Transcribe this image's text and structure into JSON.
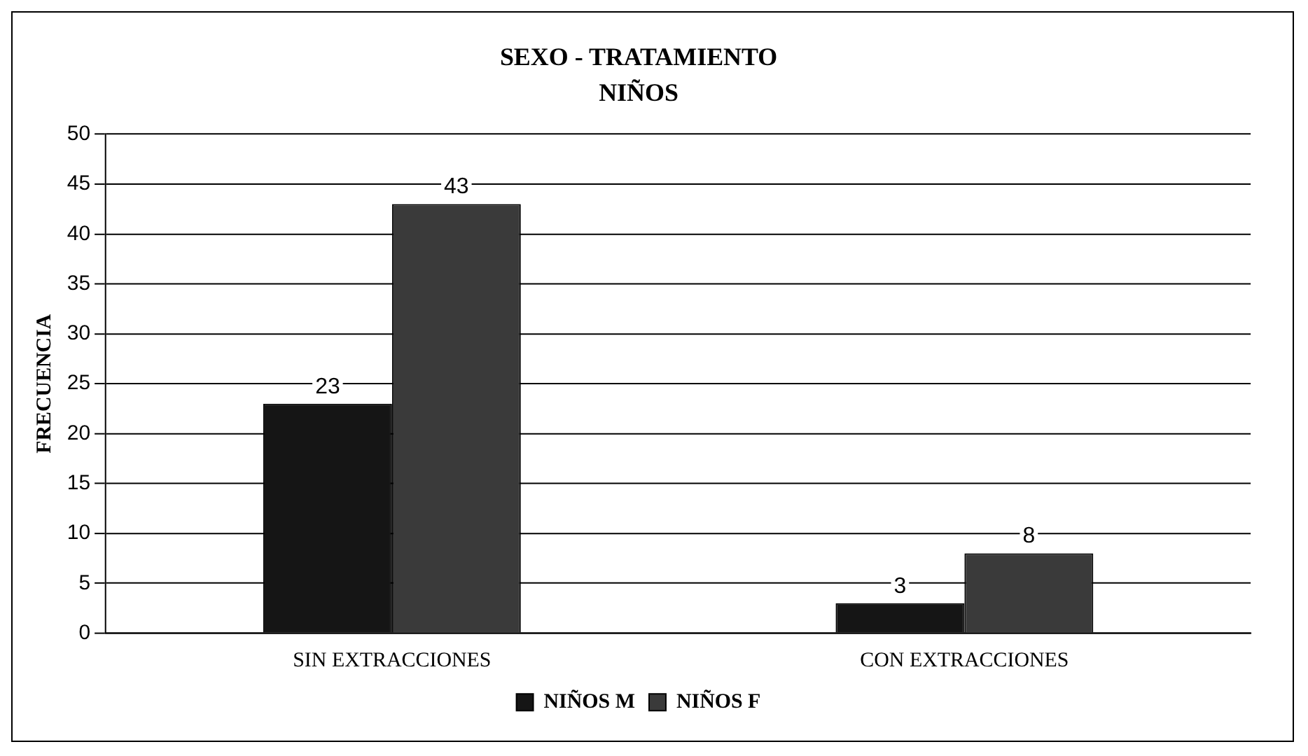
{
  "chart_data": {
    "type": "bar",
    "title": "SEXO - TRATAMIENTO",
    "subtitle": "NIÑOS",
    "ylabel": "FRECUENCIA",
    "categories": [
      "SIN EXTRACCIONES",
      "CON EXTRACCIONES"
    ],
    "series": [
      {
        "name": "NIÑOS M",
        "color": "#151515",
        "values": [
          23,
          3
        ]
      },
      {
        "name": "NIÑOS F",
        "color": "#3a3a3a",
        "values": [
          43,
          8
        ]
      }
    ],
    "ylim": [
      0,
      50
    ],
    "yticks": [
      0,
      5,
      10,
      15,
      20,
      25,
      30,
      35,
      40,
      45,
      50
    ],
    "grid": "y",
    "legend": "bottom",
    "data_labels": true
  }
}
